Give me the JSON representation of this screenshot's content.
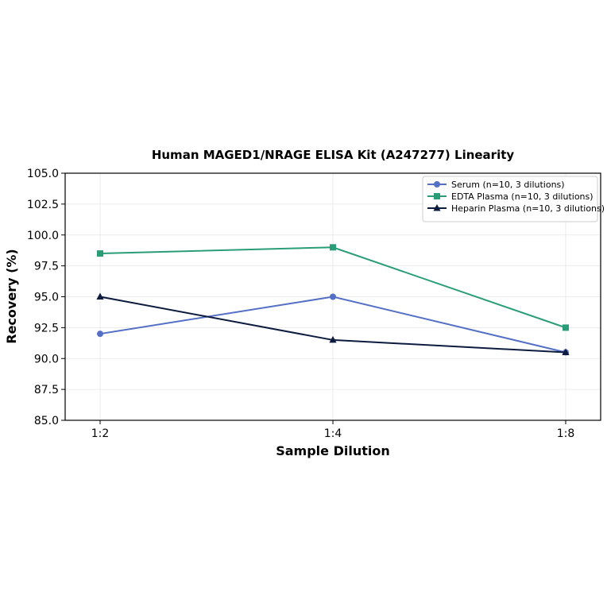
{
  "chart_data": {
    "type": "line",
    "title": "Human MAGED1/NRAGE ELISA Kit (A247277) Linearity",
    "xlabel": "Sample Dilution",
    "ylabel": "Recovery (%)",
    "categories": [
      "1:2",
      "1:4",
      "1:8"
    ],
    "ylim": [
      85.0,
      105.0
    ],
    "yticks": [
      "85.0",
      "87.5",
      "90.0",
      "92.5",
      "95.0",
      "97.5",
      "100.0",
      "102.5",
      "105.0"
    ],
    "grid": true,
    "legend_position": "top-right",
    "series": [
      {
        "name": "Serum (n=10, 3 dilutions)",
        "values": [
          92.0,
          95.0,
          90.5
        ],
        "color": "#5470c6",
        "marker": "circle"
      },
      {
        "name": "EDTA Plasma (n=10, 3 dilutions)",
        "values": [
          98.5,
          99.0,
          92.5
        ],
        "color": "#2a9d78",
        "marker": "square"
      },
      {
        "name": "Heparin Plasma (n=10, 3 dilutions)",
        "values": [
          95.0,
          91.5,
          90.5
        ],
        "color": "#0d1b3e",
        "marker": "triangle"
      }
    ]
  }
}
